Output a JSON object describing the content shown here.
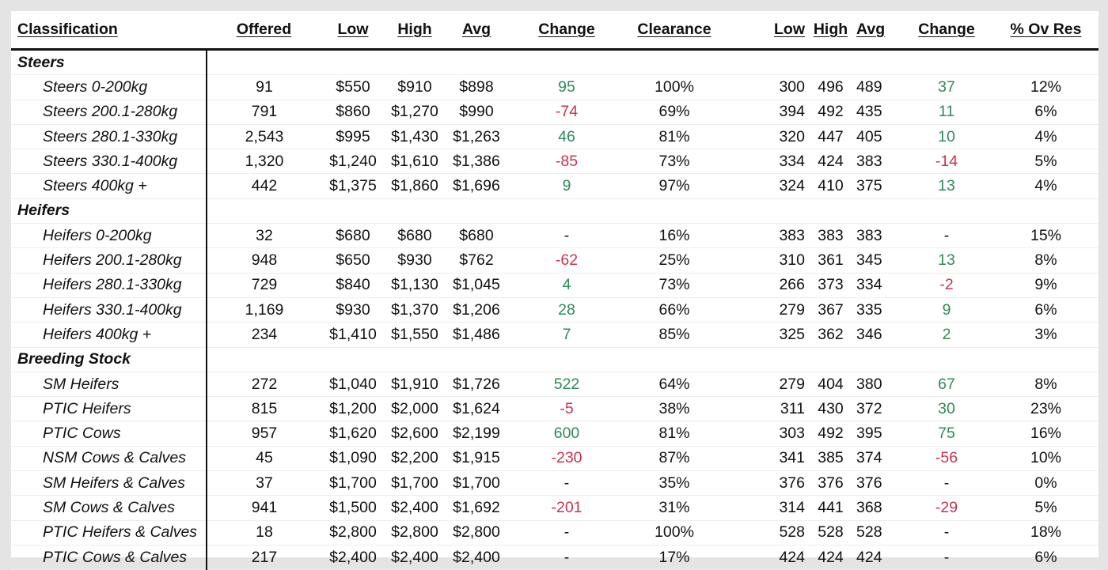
{
  "headers": [
    "Classification",
    "Offered",
    "Low",
    "High",
    "Avg",
    "Change",
    "Clearance",
    "Low",
    "High",
    "Avg",
    "Change",
    "% Ov Res"
  ],
  "groups": [
    {
      "name": "Steers",
      "rows": [
        {
          "label": "Steers 0-200kg",
          "offered": "91",
          "low": "$550",
          "high": "$910",
          "avg": "$898",
          "change": "95",
          "change_sign": "pos",
          "clearance": "100%",
          "low_c": "300",
          "high_c": "496",
          "avg_c": "489",
          "change_c": "37",
          "change_c_sign": "pos",
          "ov_res": "12%"
        },
        {
          "label": "Steers 200.1-280kg",
          "offered": "791",
          "low": "$860",
          "high": "$1,270",
          "avg": "$990",
          "change": "-74",
          "change_sign": "neg",
          "clearance": "69%",
          "low_c": "394",
          "high_c": "492",
          "avg_c": "435",
          "change_c": "11",
          "change_c_sign": "pos",
          "ov_res": "6%"
        },
        {
          "label": "Steers 280.1-330kg",
          "offered": "2,543",
          "low": "$995",
          "high": "$1,430",
          "avg": "$1,263",
          "change": "46",
          "change_sign": "pos",
          "clearance": "81%",
          "low_c": "320",
          "high_c": "447",
          "avg_c": "405",
          "change_c": "10",
          "change_c_sign": "pos",
          "ov_res": "4%"
        },
        {
          "label": "Steers 330.1-400kg",
          "offered": "1,320",
          "low": "$1,240",
          "high": "$1,610",
          "avg": "$1,386",
          "change": "-85",
          "change_sign": "neg",
          "clearance": "73%",
          "low_c": "334",
          "high_c": "424",
          "avg_c": "383",
          "change_c": "-14",
          "change_c_sign": "neg",
          "ov_res": "5%"
        },
        {
          "label": "Steers 400kg +",
          "offered": "442",
          "low": "$1,375",
          "high": "$1,860",
          "avg": "$1,696",
          "change": "9",
          "change_sign": "pos",
          "clearance": "97%",
          "low_c": "324",
          "high_c": "410",
          "avg_c": "375",
          "change_c": "13",
          "change_c_sign": "pos",
          "ov_res": "4%"
        }
      ]
    },
    {
      "name": "Heifers",
      "rows": [
        {
          "label": "Heifers 0-200kg",
          "offered": "32",
          "low": "$680",
          "high": "$680",
          "avg": "$680",
          "change": "-",
          "change_sign": "neu",
          "clearance": "16%",
          "low_c": "383",
          "high_c": "383",
          "avg_c": "383",
          "change_c": "-",
          "change_c_sign": "neu",
          "ov_res": "15%"
        },
        {
          "label": "Heifers 200.1-280kg",
          "offered": "948",
          "low": "$650",
          "high": "$930",
          "avg": "$762",
          "change": "-62",
          "change_sign": "neg",
          "clearance": "25%",
          "low_c": "310",
          "high_c": "361",
          "avg_c": "345",
          "change_c": "13",
          "change_c_sign": "pos",
          "ov_res": "8%"
        },
        {
          "label": "Heifers 280.1-330kg",
          "offered": "729",
          "low": "$840",
          "high": "$1,130",
          "avg": "$1,045",
          "change": "4",
          "change_sign": "pos",
          "clearance": "73%",
          "low_c": "266",
          "high_c": "373",
          "avg_c": "334",
          "change_c": "-2",
          "change_c_sign": "neg",
          "ov_res": "9%"
        },
        {
          "label": "Heifers 330.1-400kg",
          "offered": "1,169",
          "low": "$930",
          "high": "$1,370",
          "avg": "$1,206",
          "change": "28",
          "change_sign": "pos",
          "clearance": "66%",
          "low_c": "279",
          "high_c": "367",
          "avg_c": "335",
          "change_c": "9",
          "change_c_sign": "pos",
          "ov_res": "6%"
        },
        {
          "label": "Heifers 400kg +",
          "offered": "234",
          "low": "$1,410",
          "high": "$1,550",
          "avg": "$1,486",
          "change": "7",
          "change_sign": "pos",
          "clearance": "85%",
          "low_c": "325",
          "high_c": "362",
          "avg_c": "346",
          "change_c": "2",
          "change_c_sign": "pos",
          "ov_res": "3%"
        }
      ]
    },
    {
      "name": "Breeding Stock",
      "rows": [
        {
          "label": "SM Heifers",
          "offered": "272",
          "low": "$1,040",
          "high": "$1,910",
          "avg": "$1,726",
          "change": "522",
          "change_sign": "pos",
          "clearance": "64%",
          "low_c": "279",
          "high_c": "404",
          "avg_c": "380",
          "change_c": "67",
          "change_c_sign": "pos",
          "ov_res": "8%"
        },
        {
          "label": "PTIC Heifers",
          "offered": "815",
          "low": "$1,200",
          "high": "$2,000",
          "avg": "$1,624",
          "change": "-5",
          "change_sign": "neg",
          "clearance": "38%",
          "low_c": "311",
          "high_c": "430",
          "avg_c": "372",
          "change_c": "30",
          "change_c_sign": "pos",
          "ov_res": "23%"
        },
        {
          "label": "PTIC Cows",
          "offered": "957",
          "low": "$1,620",
          "high": "$2,600",
          "avg": "$2,199",
          "change": "600",
          "change_sign": "pos",
          "clearance": "81%",
          "low_c": "303",
          "high_c": "492",
          "avg_c": "395",
          "change_c": "75",
          "change_c_sign": "pos",
          "ov_res": "16%"
        },
        {
          "label": "NSM Cows & Calves",
          "offered": "45",
          "low": "$1,090",
          "high": "$2,200",
          "avg": "$1,915",
          "change": "-230",
          "change_sign": "neg",
          "clearance": "87%",
          "low_c": "341",
          "high_c": "385",
          "avg_c": "374",
          "change_c": "-56",
          "change_c_sign": "neg",
          "ov_res": "10%"
        },
        {
          "label": "SM Heifers & Calves",
          "offered": "37",
          "low": "$1,700",
          "high": "$1,700",
          "avg": "$1,700",
          "change": "-",
          "change_sign": "neu",
          "clearance": "35%",
          "low_c": "376",
          "high_c": "376",
          "avg_c": "376",
          "change_c": "-",
          "change_c_sign": "neu",
          "ov_res": "0%"
        },
        {
          "label": "SM Cows & Calves",
          "offered": "941",
          "low": "$1,500",
          "high": "$2,400",
          "avg": "$1,692",
          "change": "-201",
          "change_sign": "neg",
          "clearance": "31%",
          "low_c": "314",
          "high_c": "441",
          "avg_c": "368",
          "change_c": "-29",
          "change_c_sign": "neg",
          "ov_res": "5%"
        },
        {
          "label": "PTIC Heifers & Calves",
          "offered": "18",
          "low": "$2,800",
          "high": "$2,800",
          "avg": "$2,800",
          "change": "-",
          "change_sign": "neu",
          "clearance": "100%",
          "low_c": "528",
          "high_c": "528",
          "avg_c": "528",
          "change_c": "-",
          "change_c_sign": "neu",
          "ov_res": "18%"
        },
        {
          "label": "PTIC Cows & Calves",
          "offered": "217",
          "low": "$2,400",
          "high": "$2,400",
          "avg": "$2,400",
          "change": "-",
          "change_sign": "neu",
          "clearance": "17%",
          "low_c": "424",
          "high_c": "424",
          "avg_c": "424",
          "change_c": "-",
          "change_c_sign": "neu",
          "ov_res": "6%"
        }
      ]
    }
  ],
  "colors": {
    "positive": "#2e8b57",
    "negative": "#c8334f",
    "neutral": "#111111"
  }
}
